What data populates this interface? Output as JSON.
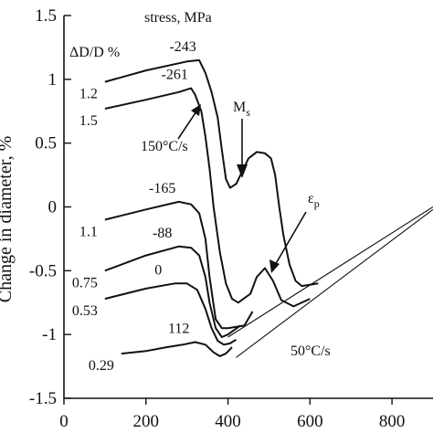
{
  "chart_data": {
    "type": "line",
    "ylabel": "Change in diameter, %",
    "xlim": [
      0,
      900
    ],
    "ylim": [
      -1.5,
      1.5
    ],
    "xticks": [
      0,
      200,
      400,
      600,
      800
    ],
    "yticks": [
      -1.5,
      -1,
      -0.5,
      0,
      0.5,
      1,
      1.5
    ],
    "xtick_labels": [
      "0",
      "200",
      "400",
      "600",
      "800"
    ],
    "ytick_labels": [
      "-1.5",
      "-1",
      "-0.5",
      "0",
      "0.5",
      "1",
      "1.5"
    ],
    "grid": false,
    "header_stress": "stress, MPa",
    "header_strain": "ΔD/D %",
    "series": [
      {
        "stress_label": "-243",
        "strain_label": "1.2",
        "values": [
          [
            100,
            0.98
          ],
          [
            200,
            1.07
          ],
          [
            300,
            1.14
          ],
          [
            330,
            1.15
          ],
          [
            345,
            1.05
          ],
          [
            360,
            0.9
          ],
          [
            375,
            0.7
          ],
          [
            385,
            0.45
          ],
          [
            395,
            0.22
          ],
          [
            405,
            0.15
          ],
          [
            420,
            0.18
          ],
          [
            450,
            0.38
          ],
          [
            470,
            0.43
          ],
          [
            490,
            0.42
          ],
          [
            505,
            0.38
          ],
          [
            515,
            0.25
          ],
          [
            525,
            0.0
          ],
          [
            535,
            -0.22
          ],
          [
            550,
            -0.45
          ],
          [
            565,
            -0.58
          ],
          [
            580,
            -0.62
          ],
          [
            620,
            -0.6
          ]
        ]
      },
      {
        "stress_label": "-261",
        "strain_label": "1.5",
        "values": [
          [
            100,
            0.77
          ],
          [
            200,
            0.84
          ],
          [
            280,
            0.9
          ],
          [
            310,
            0.93
          ],
          [
            320,
            0.88
          ],
          [
            335,
            0.75
          ],
          [
            345,
            0.55
          ],
          [
            355,
            0.3
          ],
          [
            365,
            0.0
          ],
          [
            380,
            -0.35
          ],
          [
            395,
            -0.6
          ],
          [
            410,
            -0.72
          ],
          [
            425,
            -0.75
          ],
          [
            455,
            -0.68
          ],
          [
            470,
            -0.55
          ],
          [
            490,
            -0.48
          ],
          [
            510,
            -0.58
          ],
          [
            530,
            -0.73
          ],
          [
            560,
            -0.78
          ],
          [
            600,
            -0.72
          ]
        ]
      },
      {
        "stress_label": "-165",
        "strain_label": "1.1",
        "values": [
          [
            100,
            -0.1
          ],
          [
            200,
            -0.02
          ],
          [
            280,
            0.04
          ],
          [
            310,
            0.02
          ],
          [
            330,
            -0.05
          ],
          [
            345,
            -0.25
          ],
          [
            355,
            -0.55
          ],
          [
            370,
            -0.88
          ],
          [
            385,
            -0.95
          ],
          [
            400,
            -0.95
          ],
          [
            440,
            -0.93
          ],
          [
            460,
            -0.82
          ]
        ]
      },
      {
        "stress_label": "-88",
        "strain_label": "0.75",
        "values": [
          [
            100,
            -0.5
          ],
          [
            200,
            -0.38
          ],
          [
            280,
            -0.31
          ],
          [
            310,
            -0.32
          ],
          [
            330,
            -0.38
          ],
          [
            345,
            -0.55
          ],
          [
            355,
            -0.75
          ],
          [
            370,
            -0.95
          ],
          [
            385,
            -1.02
          ],
          [
            400,
            -1.0
          ],
          [
            430,
            -0.93
          ]
        ]
      },
      {
        "stress_label": "0",
        "strain_label": "0.53",
        "values": [
          [
            100,
            -0.72
          ],
          [
            200,
            -0.64
          ],
          [
            270,
            -0.6
          ],
          [
            300,
            -0.6
          ],
          [
            325,
            -0.65
          ],
          [
            345,
            -0.8
          ],
          [
            360,
            -0.95
          ],
          [
            375,
            -1.05
          ],
          [
            390,
            -1.08
          ],
          [
            405,
            -1.07
          ],
          [
            420,
            -1.04
          ]
        ]
      },
      {
        "stress_label": "112",
        "strain_label": "0.29",
        "values": [
          [
            140,
            -1.15
          ],
          [
            200,
            -1.13
          ],
          [
            250,
            -1.1
          ],
          [
            290,
            -1.08
          ],
          [
            320,
            -1.06
          ],
          [
            345,
            -1.08
          ],
          [
            365,
            -1.14
          ],
          [
            380,
            -1.17
          ],
          [
            395,
            -1.15
          ],
          [
            410,
            -1.1
          ]
        ]
      },
      {
        "stress_label": "",
        "strain_label": "",
        "values": [
          [
            400,
            -1.02
          ],
          [
            900,
            0.0
          ]
        ]
      },
      {
        "stress_label": "",
        "strain_label": "",
        "values": [
          [
            420,
            -1.18
          ],
          [
            900,
            -0.02
          ]
        ]
      }
    ],
    "annotations": {
      "ms": "M",
      "ms_sub": "s",
      "ep": "ε",
      "ep_sub": "p",
      "rate_fast": "150°C/s",
      "rate_slow": "50°C/s"
    }
  }
}
